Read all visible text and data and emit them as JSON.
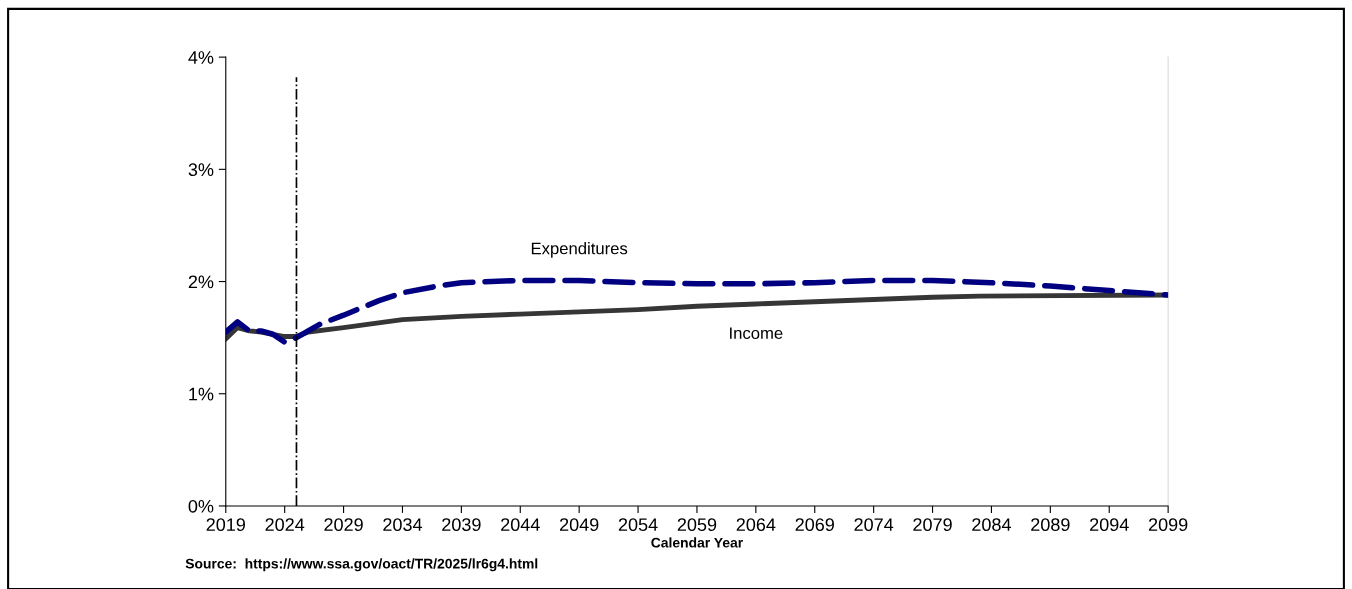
{
  "chart_data": {
    "type": "line",
    "xlabel": "Calendar Year",
    "annotations": [
      "Source:  https://www.ssa.gov/oact/TR/2025/lr6g4.html"
    ],
    "series": [
      {
        "name": "Expenditures",
        "color": "#000080",
        "line_style": "dashed",
        "x": [
          2019,
          2020,
          2021,
          2022,
          2023,
          2024,
          2025,
          2026,
          2027,
          2029,
          2032,
          2034,
          2037,
          2039,
          2044,
          2049,
          2054,
          2059,
          2064,
          2069,
          2074,
          2079,
          2084,
          2089,
          2094,
          2099
        ],
        "values": [
          1.55,
          1.64,
          1.56,
          1.56,
          1.53,
          1.46,
          1.5,
          1.56,
          1.62,
          1.7,
          1.83,
          1.9,
          1.96,
          1.99,
          2.01,
          2.01,
          1.99,
          1.98,
          1.98,
          1.99,
          2.01,
          2.01,
          1.99,
          1.96,
          1.92,
          1.88
        ]
      },
      {
        "name": "Income",
        "color": "#363636",
        "line_style": "solid",
        "x": [
          2019,
          2020,
          2021,
          2022,
          2023,
          2024,
          2025,
          2026,
          2029,
          2034,
          2039,
          2044,
          2049,
          2054,
          2059,
          2064,
          2069,
          2074,
          2079,
          2083,
          2099
        ],
        "values": [
          1.49,
          1.59,
          1.56,
          1.55,
          1.53,
          1.51,
          1.51,
          1.55,
          1.59,
          1.66,
          1.69,
          1.71,
          1.73,
          1.75,
          1.78,
          1.8,
          1.82,
          1.84,
          1.86,
          1.87,
          1.88
        ]
      }
    ],
    "xlim": [
      2019,
      2099
    ],
    "xticks": [
      2019,
      2024,
      2029,
      2034,
      2039,
      2044,
      2049,
      2054,
      2059,
      2064,
      2069,
      2074,
      2079,
      2084,
      2089,
      2094,
      2099
    ],
    "ylim": [
      0,
      4
    ],
    "yticks": [
      {
        "value": 0,
        "label": "0%"
      },
      {
        "value": 1,
        "label": "1%"
      },
      {
        "value": 2,
        "label": "2%"
      },
      {
        "value": 3,
        "label": "3%"
      },
      {
        "value": 4,
        "label": "4%"
      }
    ],
    "ref_lines": [
      {
        "axis": "x",
        "value": 2025,
        "color": "#000000",
        "line_style": "dashdot"
      }
    ],
    "grid": false,
    "legend": false,
    "marker": "none"
  }
}
